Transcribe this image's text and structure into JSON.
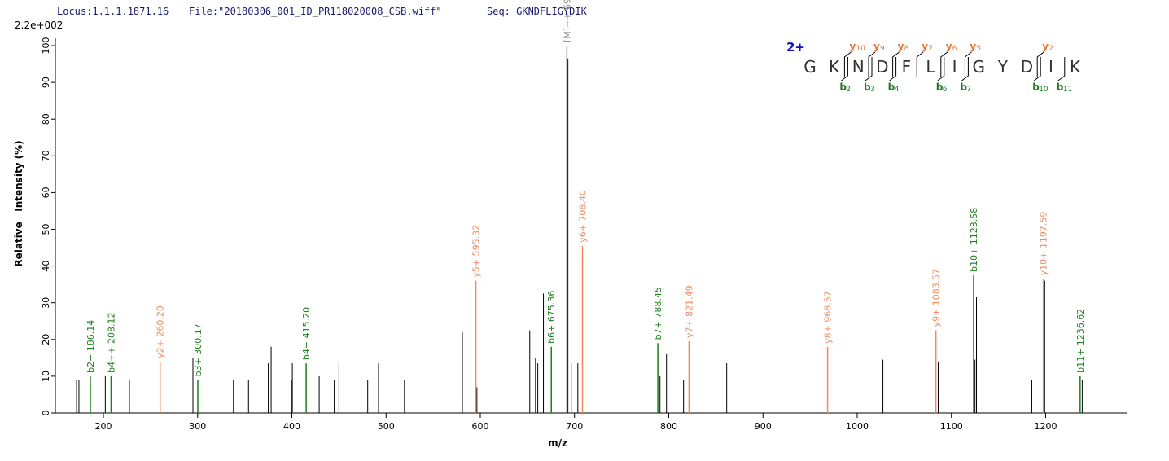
{
  "chart_data": {
    "type": "spectrum",
    "header": {
      "locus": "Locus:1.1.1.1871.16",
      "file": "File:\"20180306_001_ID_PR118020008_CSB.wiff\"",
      "seq": "Seq: GKNDFLIGYDIK"
    },
    "scale_label": "2.2e+002",
    "ylabel": "Relative   Intensity (%)",
    "xlabel": "m/z",
    "xlim": [
      149,
      1286
    ],
    "ylim": [
      0,
      102
    ],
    "xticks": [
      200,
      300,
      400,
      500,
      600,
      700,
      800,
      900,
      1000,
      1100,
      1200
    ],
    "yticks": [
      0,
      10,
      20,
      30,
      40,
      50,
      60,
      70,
      80,
      90,
      100
    ],
    "series": [
      {
        "color": "#000000",
        "x": [
          171.5,
          174,
          202,
          227.6,
          295,
          338,
          354,
          375,
          378,
          399.5,
          400.5,
          429,
          445,
          450,
          480.5,
          492,
          519.5,
          581,
          596.4,
          652.5,
          658.6,
          661,
          667,
          693,
          696.5,
          703.5,
          790.7,
          797.6,
          815.7,
          861.5,
          1027.3,
          1086,
          1125,
          1126.6,
          1185.3,
          1199,
          1238.8
        ],
        "values": [
          9,
          9,
          10,
          9,
          15,
          9,
          9,
          13.5,
          18,
          9,
          13.5,
          10,
          9,
          14,
          9,
          13.5,
          9,
          22,
          7,
          22.5,
          15,
          13.5,
          32.5,
          96.5,
          13.5,
          13.5,
          10,
          16,
          9,
          13.5,
          14.5,
          14,
          14.5,
          31.5,
          9,
          36,
          9
        ]
      },
      {
        "color": "#1f7f1f",
        "x": [
          186.14,
          208.12,
          300.17,
          415.2,
          675.36,
          788.45,
          1123.58,
          1236.62
        ],
        "values": [
          10,
          10,
          9,
          13.5,
          18,
          19,
          37.5,
          10
        ],
        "labels": [
          "b2+ 186.14",
          "b4++ 208.12",
          "b3+ 300.17",
          "b4+ 415.20",
          "b6+ 675.36",
          "b7+ 788.45",
          "b10+ 1123.58",
          "b11+ 1236.62"
        ]
      },
      {
        "color": "#f08a5d",
        "x": [
          260.2,
          595.32,
          708.4,
          821.49,
          968.57,
          1083.57,
          1197.59
        ],
        "values": [
          14,
          36,
          45.5,
          19.5,
          18,
          22.5,
          36.5
        ],
        "labels": [
          "y2+ 260.20",
          "y5+ 595.32",
          "y6+ 708.40",
          "y7+ 821.49",
          "y8+ 968.57",
          "y9+ 1083.57",
          "y10+ 1197.59"
        ]
      },
      {
        "color": "#888888",
        "x": [
          691.88
        ],
        "values": [
          100
        ],
        "labels": [
          "[M]++ 691.88"
        ]
      }
    ],
    "sequence": {
      "charge": "2+",
      "residues": [
        "G",
        "K",
        "N",
        "D",
        "F",
        "L",
        "I",
        "G",
        "Y",
        "D",
        "I",
        "K"
      ],
      "y_ions": [
        {
          "ion": "y",
          "num": 10
        },
        {
          "ion": "y",
          "num": 9
        },
        {
          "ion": "y",
          "num": 8
        },
        {
          "ion": "y",
          "num": 7
        },
        {
          "ion": "y",
          "num": 6
        },
        {
          "ion": "y",
          "num": 5
        },
        {
          "ion": "y",
          "num": 2
        }
      ],
      "b_ions": [
        {
          "ion": "b",
          "num": 2
        },
        {
          "ion": "b",
          "num": 3
        },
        {
          "ion": "b",
          "num": 4
        },
        {
          "ion": "b",
          "num": 6
        },
        {
          "ion": "b",
          "num": 7
        },
        {
          "ion": "b",
          "num": 10
        },
        {
          "ion": "b",
          "num": 11
        }
      ]
    }
  }
}
